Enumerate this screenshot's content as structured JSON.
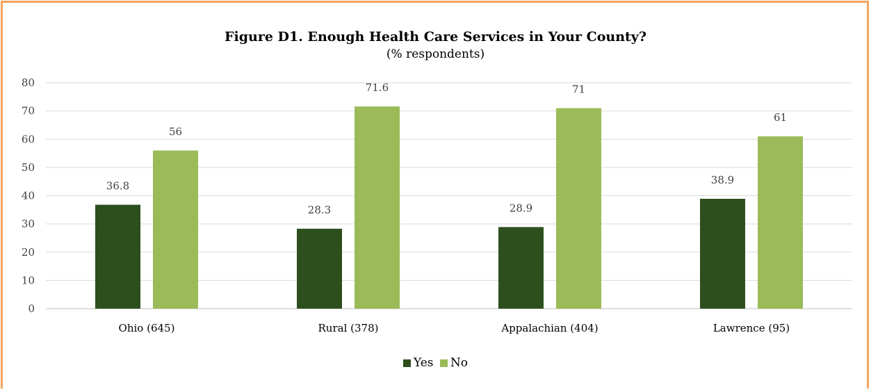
{
  "chart_data": {
    "type": "bar",
    "title": "Figure D1. Enough Health Care Services in Your County?",
    "subtitle": "(% respondents)",
    "categories": [
      "Ohio (645)",
      "Rural (378)",
      "Appalachian (404)",
      "Lawrence (95)"
    ],
    "series": [
      {
        "name": "Yes",
        "values": [
          36.8,
          28.3,
          28.9,
          38.9
        ],
        "color": "#2d4f1e"
      },
      {
        "name": "No",
        "values": [
          56,
          71.6,
          71,
          61
        ],
        "color": "#9bbb59"
      }
    ],
    "ylim": [
      0,
      80
    ],
    "yticks": [
      0,
      10,
      20,
      30,
      40,
      50,
      60,
      70,
      80
    ],
    "grid": true,
    "legend": "bottom",
    "data_labels": true
  }
}
